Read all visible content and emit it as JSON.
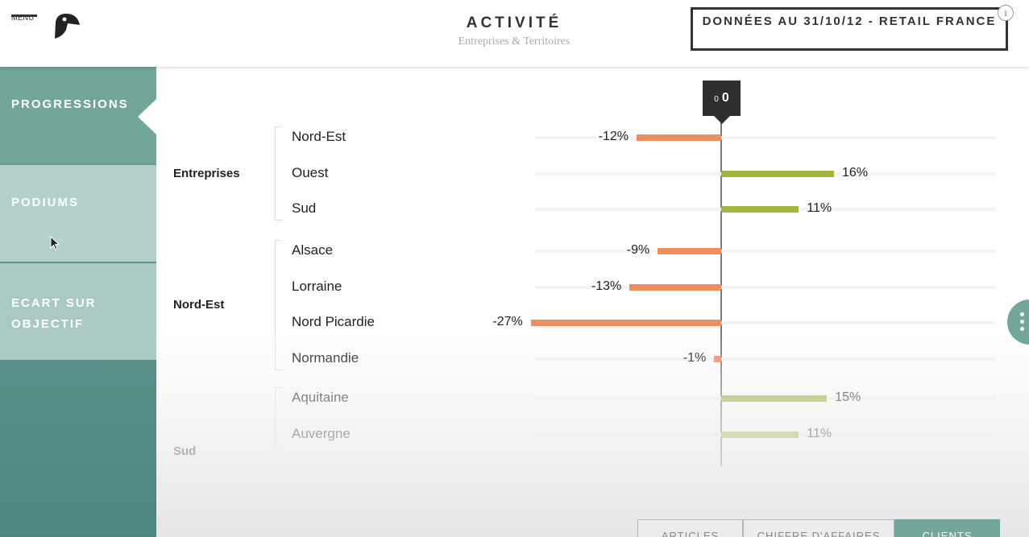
{
  "header": {
    "menu_label": "MENU",
    "title": "ACTIVITÉ",
    "subtitle": "Entreprises & Territoires",
    "date_label": "DONNÉES AU 31/10/12 - RETAIL FRANCE",
    "info_label": "i"
  },
  "sidebar": {
    "items": [
      {
        "label": "PROGRESSIONS",
        "active": true
      },
      {
        "label": "PODIUMS",
        "active": false
      },
      {
        "label": "ECART SUR OBJECTIF",
        "active": false
      }
    ]
  },
  "marker": {
    "small": "0",
    "value": "0"
  },
  "chart_data": {
    "type": "bar",
    "orientation": "horizontal",
    "groups": [
      {
        "name": "Entreprises",
        "rows": [
          {
            "label": "Nord-Est",
            "value": -12,
            "display": "-12%"
          },
          {
            "label": "Ouest",
            "value": 16,
            "display": "16%"
          },
          {
            "label": "Sud",
            "value": 11,
            "display": "11%"
          }
        ]
      },
      {
        "name": "Nord-Est",
        "rows": [
          {
            "label": "Alsace",
            "value": -9,
            "display": "-9%"
          },
          {
            "label": "Lorraine",
            "value": -13,
            "display": "-13%"
          },
          {
            "label": "Nord Picardie",
            "value": -27,
            "display": "-27%"
          },
          {
            "label": "Normandie",
            "value": -1,
            "display": "-1%"
          }
        ]
      },
      {
        "name": "Sud",
        "rows": [
          {
            "label": "Aquitaine",
            "value": 15,
            "display": "15%"
          },
          {
            "label": "Auvergne",
            "value": 11,
            "display": "11%"
          }
        ]
      }
    ],
    "colors": {
      "negative": "#ed8d60",
      "positive": "#a5b43b"
    }
  },
  "tabs": [
    {
      "label": "ARTICLES",
      "active": false
    },
    {
      "label": "CHIFFRE D'AFFAIRES",
      "active": false
    },
    {
      "label": "CLIENTS",
      "active": true
    }
  ]
}
